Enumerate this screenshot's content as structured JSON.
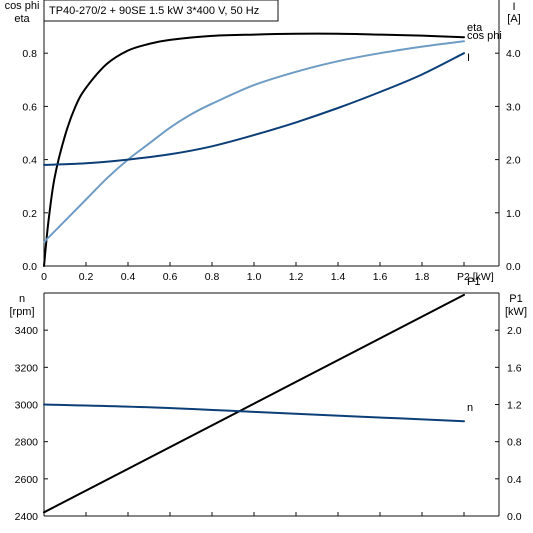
{
  "title": "TP40-270/2 + 90SE   1.5 kW   3*400 V, 50 Hz",
  "chart_data": [
    {
      "type": "line",
      "xlabel": "P2 [kW]",
      "xlim": [
        0,
        2.0
      ],
      "x_ticks": [
        "0",
        "0.2",
        "0.4",
        "0.6",
        "0.8",
        "1.0",
        "1.2",
        "1.4",
        "1.6",
        "1.8",
        "P2 [kW]"
      ],
      "left_axis": {
        "label_top": "cos phi",
        "label_bottom": "eta",
        "ylim": [
          0,
          1.0
        ],
        "ticks": [
          "0.0",
          "0.2",
          "0.4",
          "0.6",
          "0.8"
        ]
      },
      "right_axis": {
        "label_top": "I",
        "label_bottom": "[A]",
        "ylim": [
          0,
          5.0
        ],
        "ticks": [
          "0.0",
          "1.0",
          "2.0",
          "3.0",
          "4.0"
        ]
      },
      "series": [
        {
          "name": "eta",
          "axis": "left",
          "color": "#000000",
          "points": [
            [
              0,
              0
            ],
            [
              0.02,
              0.16
            ],
            [
              0.05,
              0.33
            ],
            [
              0.1,
              0.49
            ],
            [
              0.15,
              0.6
            ],
            [
              0.2,
              0.67
            ],
            [
              0.3,
              0.76
            ],
            [
              0.4,
              0.81
            ],
            [
              0.5,
              0.835
            ],
            [
              0.6,
              0.85
            ],
            [
              0.8,
              0.865
            ],
            [
              1.0,
              0.87
            ],
            [
              1.2,
              0.873
            ],
            [
              1.4,
              0.873
            ],
            [
              1.6,
              0.87
            ],
            [
              1.8,
              0.866
            ],
            [
              2.0,
              0.86
            ]
          ]
        },
        {
          "name": "cos phi",
          "axis": "left",
          "color": "#6f9cc4",
          "points": [
            [
              0,
              0.09
            ],
            [
              0.1,
              0.17
            ],
            [
              0.2,
              0.25
            ],
            [
              0.3,
              0.33
            ],
            [
              0.4,
              0.4
            ],
            [
              0.5,
              0.46
            ],
            [
              0.6,
              0.52
            ],
            [
              0.7,
              0.57
            ],
            [
              0.8,
              0.61
            ],
            [
              1.0,
              0.68
            ],
            [
              1.2,
              0.73
            ],
            [
              1.4,
              0.77
            ],
            [
              1.6,
              0.8
            ],
            [
              1.8,
              0.825
            ],
            [
              2.0,
              0.845
            ]
          ]
        },
        {
          "name": "I",
          "axis": "right",
          "color": "#0c3f78",
          "points": [
            [
              0,
              1.9
            ],
            [
              0.2,
              1.93
            ],
            [
              0.4,
              2.0
            ],
            [
              0.6,
              2.1
            ],
            [
              0.8,
              2.25
            ],
            [
              1.0,
              2.46
            ],
            [
              1.2,
              2.7
            ],
            [
              1.4,
              2.97
            ],
            [
              1.6,
              3.27
            ],
            [
              1.8,
              3.6
            ],
            [
              2.0,
              4.0
            ]
          ]
        }
      ]
    },
    {
      "type": "line",
      "xlabel": "",
      "xlim": [
        0,
        2.0
      ],
      "left_axis": {
        "label_top": "n",
        "label_bottom": "[rpm]",
        "ylim": [
          2400,
          3600
        ],
        "ticks": [
          "2400",
          "2600",
          "2800",
          "3000",
          "3200",
          "3400"
        ]
      },
      "right_axis": {
        "label_top": "P1",
        "label_bottom": "[kW]",
        "ylim": [
          0,
          2.4
        ],
        "ticks": [
          "0.0",
          "0.4",
          "0.8",
          "1.2",
          "1.6",
          "2.0"
        ]
      },
      "series": [
        {
          "name": "P1",
          "axis": "right",
          "color": "#000000",
          "points": [
            [
              0,
              0.04
            ],
            [
              2.0,
              2.38
            ]
          ]
        },
        {
          "name": "n",
          "axis": "left",
          "color": "#0c3f78",
          "points": [
            [
              0,
              3000
            ],
            [
              0.5,
              2985
            ],
            [
              1.0,
              2960
            ],
            [
              1.5,
              2935
            ],
            [
              2.0,
              2910
            ]
          ]
        }
      ]
    }
  ]
}
